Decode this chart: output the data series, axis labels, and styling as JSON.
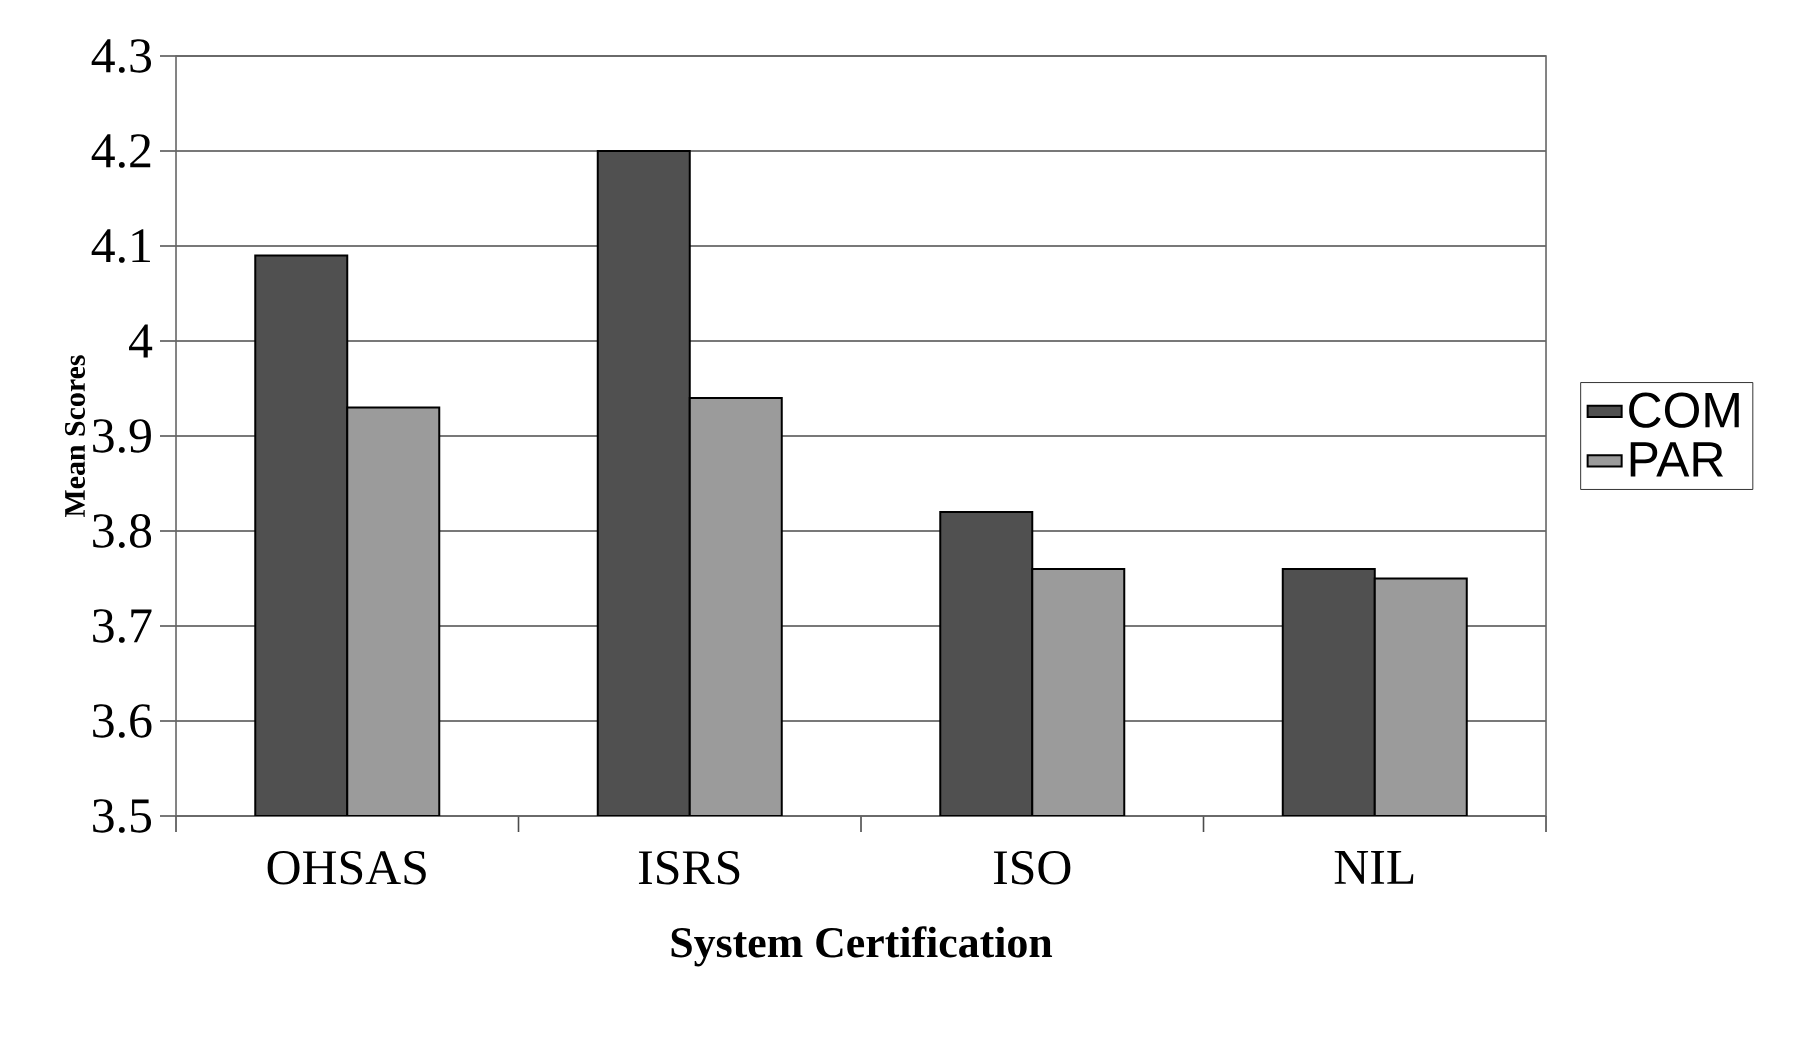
{
  "chart_data": {
    "type": "bar",
    "xlabel": "System Certification",
    "ylabel": "Mean Scores",
    "categories": [
      "OHSAS",
      "ISRS",
      "ISO",
      "NIL"
    ],
    "series": [
      {
        "name": "COM",
        "color": "#505050",
        "values": [
          4.09,
          4.2,
          3.82,
          3.76
        ]
      },
      {
        "name": "PAR",
        "color": "#9b9b9b",
        "values": [
          3.93,
          3.94,
          3.76,
          3.75
        ]
      }
    ],
    "ylim": [
      3.5,
      4.3
    ],
    "yticks": [
      3.5,
      3.6,
      3.7,
      3.8,
      3.9,
      4,
      4.1,
      4.2,
      4.3
    ],
    "grid": "y",
    "legend": "right"
  }
}
